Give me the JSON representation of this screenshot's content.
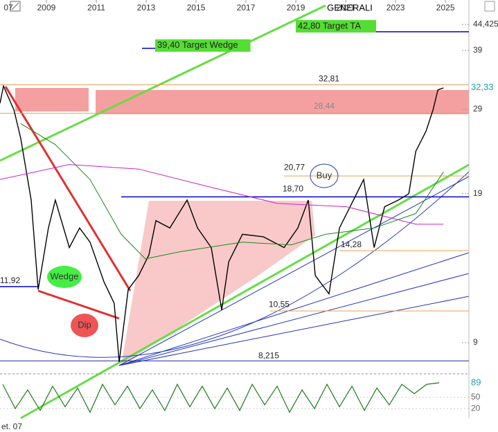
{
  "chart_data": {
    "type": "line",
    "title": "GENERALI",
    "log_scale": true,
    "xlim": [
      2007.14,
      2025.94
    ],
    "xticks": [
      {
        "value": 2007,
        "label": "07"
      },
      2009,
      2011,
      2013,
      2015,
      2017,
      2019,
      2021,
      2023,
      2025
    ],
    "ylim": [
      7.75,
      50.2
    ],
    "yticks": [
      {
        "value": 44.425,
        "label": "44,425"
      },
      39,
      29,
      19,
      9
    ],
    "last_value": {
      "value": 32.33,
      "label": "32,33",
      "color": "#1aa6b0"
    },
    "date_label": "et. 07",
    "series": [
      {
        "color": "#000000",
        "x": [
          2007.14,
          2007.28,
          2007.7,
          2007.97,
          2008.39,
          2008.67,
          2009.08,
          2009.36,
          2009.92,
          2010.33,
          2010.75,
          2011.31,
          2011.72,
          2011.92,
          2012.28,
          2012.7,
          2013.11,
          2013.39,
          2013.95,
          2014.64,
          2015.06,
          2015.61,
          2016.03,
          2016.31,
          2016.86,
          2017.7,
          2018.53,
          2019.08,
          2019.5,
          2019.78,
          2020.33,
          2020.75,
          2021.31,
          2021.72,
          2022.14,
          2022.56,
          2023.11,
          2023.53,
          2023.81,
          2024.22,
          2024.5,
          2024.7,
          2024.92
        ],
        "values": [
          29.9,
          32.6,
          28.9,
          25.1,
          18.4,
          11.75,
          16.0,
          18.4,
          14.5,
          16.0,
          14.9,
          12.2,
          10.96,
          8.17,
          11.75,
          12.6,
          13.98,
          16.6,
          16.0,
          18.4,
          16.0,
          14.5,
          10.6,
          13.5,
          15.5,
          15.3,
          14.5,
          16.0,
          18.4,
          12.6,
          11.5,
          16.0,
          18.4,
          20.4,
          14.5,
          17.8,
          18.4,
          19.0,
          23.5,
          26.0,
          28.9,
          32.0,
          32.3
        ]
      },
      {
        "color": "#1a8a1a",
        "x": [
          2007.97,
          2009.36,
          2010.75,
          2012.0,
          2012.97,
          2014.36,
          2016.86,
          2018.81,
          2020.2,
          2022.14,
          2023.81,
          2024.92
        ],
        "values": [
          27.0,
          24.3,
          20.4,
          15.5,
          13.7,
          14.2,
          14.9,
          14.7,
          15.5,
          16.0,
          17.2,
          21.2
        ]
      },
      {
        "color": "#cc22cc",
        "x": [
          2007.14,
          2009.92,
          2012.7,
          2015.47,
          2018.25,
          2021.03,
          2023.81,
          2024.92
        ],
        "values": [
          20.4,
          22.0,
          21.5,
          19.7,
          18.1,
          17.8,
          16.3,
          16.3
        ]
      }
    ],
    "levels": [
      {
        "value": 42.8,
        "label": "42,80 Target TA",
        "color": "#0000cc"
      },
      {
        "value": 39.4,
        "label": "39,40 Target Wedge",
        "color": "#0000cc"
      },
      {
        "value": 32.81,
        "label": "32,81",
        "color": "#e8a050"
      },
      {
        "value": 28.44,
        "label": "28,44",
        "color": "#e8a050"
      },
      {
        "value": 20.77,
        "label": "20,77",
        "color": "#e8a050"
      },
      {
        "value": 18.7,
        "label": "18,70",
        "color": "#0000cc"
      },
      {
        "value": 14.28,
        "label": "14,28",
        "color": "#e8a050"
      },
      {
        "value": 10.55,
        "label": "10,55",
        "color": "#e8a050"
      },
      {
        "value": 8.215,
        "label": "8,215",
        "color": "#2222aa"
      },
      {
        "value": 11.92,
        "label": "11,92",
        "color": "#0000cc"
      }
    ],
    "annotations": [
      "Wedge",
      "Dip",
      "Buy"
    ],
    "oscillator": {
      "ylim": [
        0,
        100
      ],
      "yticks": [
        50,
        20
      ],
      "last_value": 89,
      "color": "#1a7a1a",
      "x": [
        2007.25,
        2007.75,
        2008.25,
        2008.75,
        2009.25,
        2009.75,
        2010.25,
        2010.75,
        2011.25,
        2011.75,
        2012.25,
        2012.75,
        2013.25,
        2013.75,
        2014.25,
        2014.75,
        2015.25,
        2015.75,
        2016.25,
        2016.75,
        2017.25,
        2017.75,
        2018.25,
        2018.75,
        2019.25,
        2019.75,
        2020.25,
        2020.75,
        2021.25,
        2021.75,
        2022.25,
        2022.75,
        2023.25,
        2023.75,
        2024.25,
        2024.75
      ],
      "values": [
        85,
        20,
        70,
        15,
        80,
        25,
        75,
        10,
        85,
        30,
        80,
        20,
        70,
        15,
        85,
        25,
        80,
        20,
        75,
        15,
        85,
        30,
        80,
        10,
        70,
        20,
        85,
        25,
        80,
        15,
        75,
        30,
        85,
        60,
        85,
        89
      ]
    }
  }
}
